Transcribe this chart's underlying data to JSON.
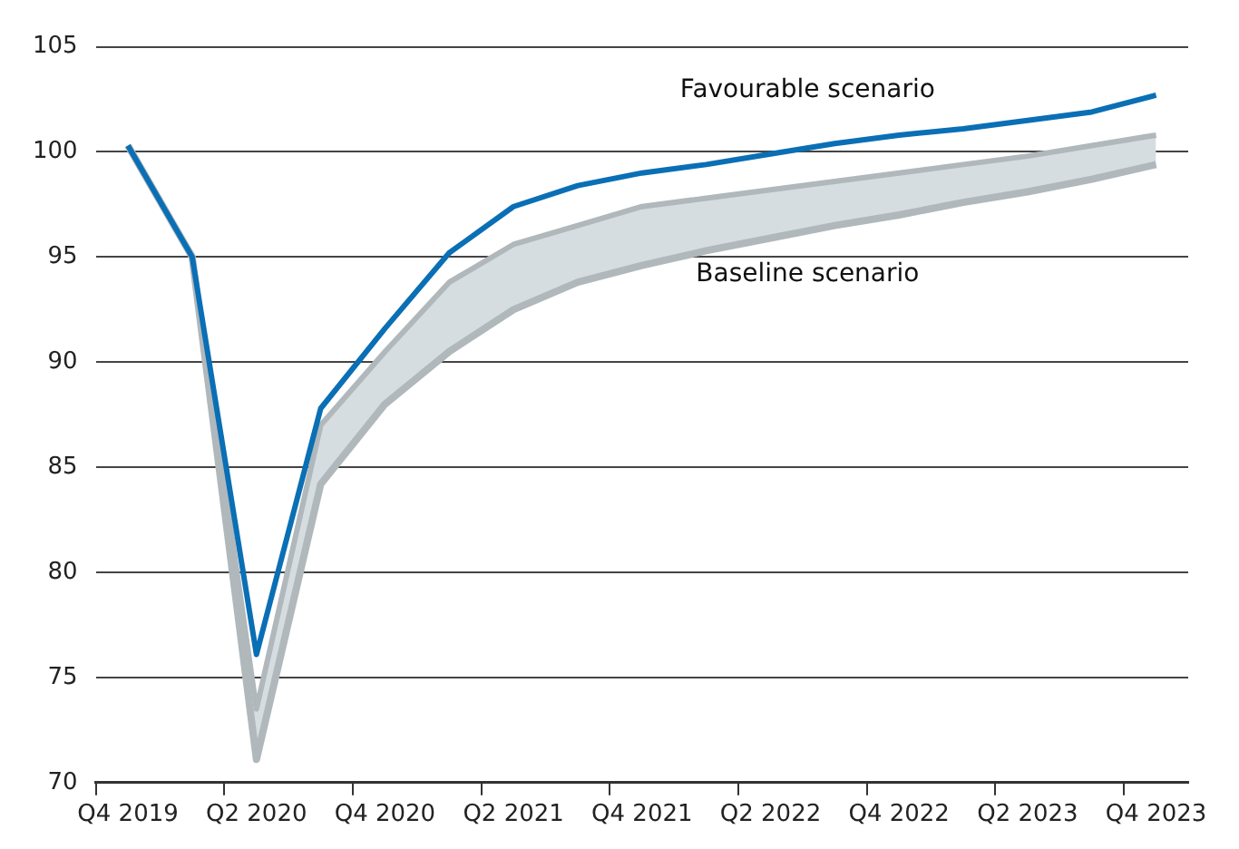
{
  "chart_data": {
    "type": "line",
    "categories": [
      "Q4 2019",
      null,
      "Q2 2020",
      null,
      "Q4 2020",
      null,
      "Q2 2021",
      null,
      "Q4 2021",
      null,
      "Q2 2022",
      null,
      "Q4 2022",
      null,
      "Q2 2023",
      null,
      "Q4 2023"
    ],
    "series": [
      {
        "name": "Favourable scenario",
        "color": "#0a6fb5",
        "values": [
          100.3,
          95,
          76.1,
          87.8,
          91.6,
          95.2,
          97.4,
          98.4,
          99,
          99.4,
          99.9,
          100.4,
          100.8,
          101.1,
          101.5,
          101.9,
          102.7
        ]
      },
      {
        "name": "Baseline scenario",
        "color": "#b0b8bc",
        "values": [
          100.3,
          95,
          71.1,
          84.2,
          88,
          90.5,
          92.5,
          93.8,
          94.6,
          95.3,
          95.9,
          96.5,
          97,
          97.6,
          98.1,
          98.7,
          99.4
        ],
        "upper": [
          100.3,
          95,
          73.5,
          87,
          90.5,
          93.8,
          95.6,
          96.5,
          97.4,
          97.8,
          98.2,
          98.6,
          99,
          99.4,
          99.8,
          100.3,
          100.8
        ],
        "lower": [
          100.3,
          95,
          71.1,
          84.2,
          88,
          90.5,
          92.5,
          93.8,
          94.6,
          95.3,
          95.9,
          96.5,
          97,
          97.6,
          98.1,
          98.7,
          99.4
        ]
      },
      {
        "color": "#b0b8bc",
        "values": [
          100.3,
          95,
          73.5,
          87,
          90.5,
          93.8,
          95.6,
          96.5,
          97.4,
          97.8,
          98.2,
          98.6,
          99,
          99.4,
          99.8,
          100.3,
          100.8
        ]
      }
    ],
    "ylim": [
      70,
      105
    ],
    "yticks": [
      70,
      75,
      80,
      85,
      90,
      95,
      100,
      105
    ],
    "grid": "y",
    "legend": false
  }
}
